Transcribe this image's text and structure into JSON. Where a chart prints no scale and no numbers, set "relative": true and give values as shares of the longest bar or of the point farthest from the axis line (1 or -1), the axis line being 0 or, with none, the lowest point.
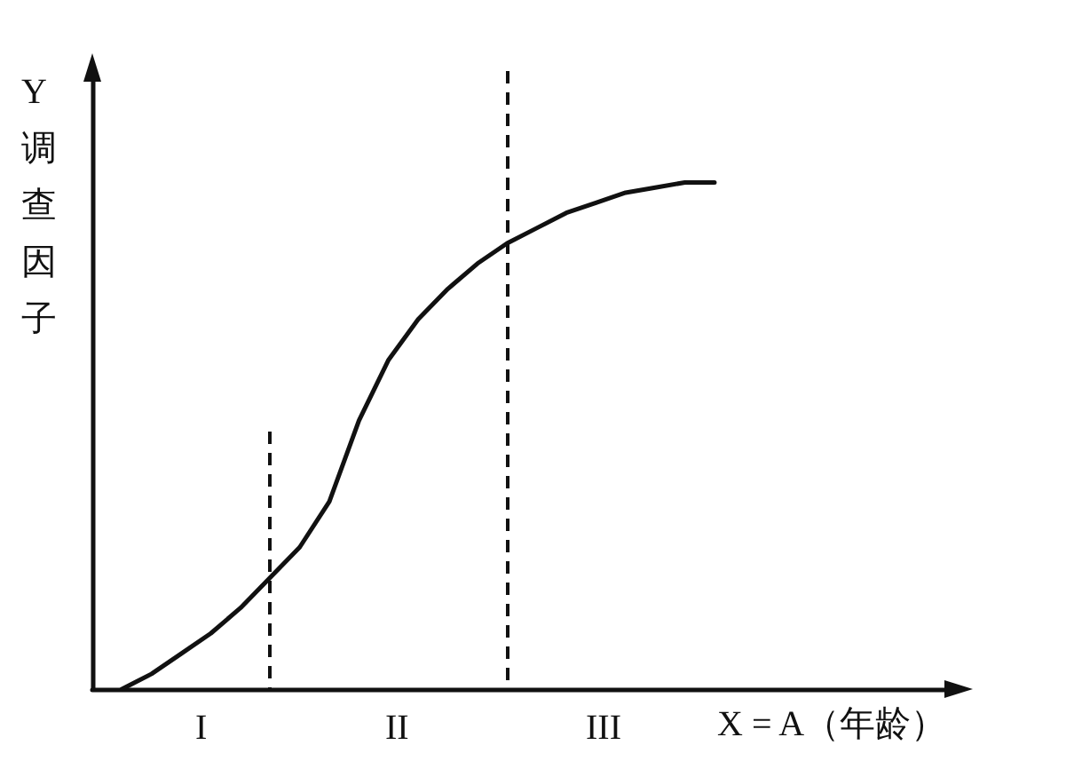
{
  "chart_data": {
    "type": "line",
    "relative": true,
    "xlabel": "X = A（年龄）",
    "ylabel": "Y调查因子",
    "marker": "none",
    "line_style": "solid",
    "grid": false,
    "categories": [
      null,
      null,
      null,
      null,
      null,
      null,
      null,
      null,
      null,
      null,
      null,
      null,
      null,
      null,
      null,
      null,
      null,
      null,
      null,
      null,
      null,
      null,
      null,
      null,
      null,
      null,
      null,
      null,
      null,
      null
    ],
    "series": [
      {
        "values": [
          null,
          0,
          0.03,
          0.07,
          0.11,
          0.16,
          0.22,
          0.28,
          0.37,
          0.53,
          0.65,
          0.73,
          0.79,
          0.84,
          0.88,
          0.91,
          0.94,
          0.96,
          0.98,
          0.99,
          1.0,
          1.0,
          null,
          null,
          null,
          null,
          null,
          null,
          null,
          null
        ],
        "color": "#111111"
      }
    ],
    "annotations": [
      "I",
      "II",
      "III"
    ]
  }
}
